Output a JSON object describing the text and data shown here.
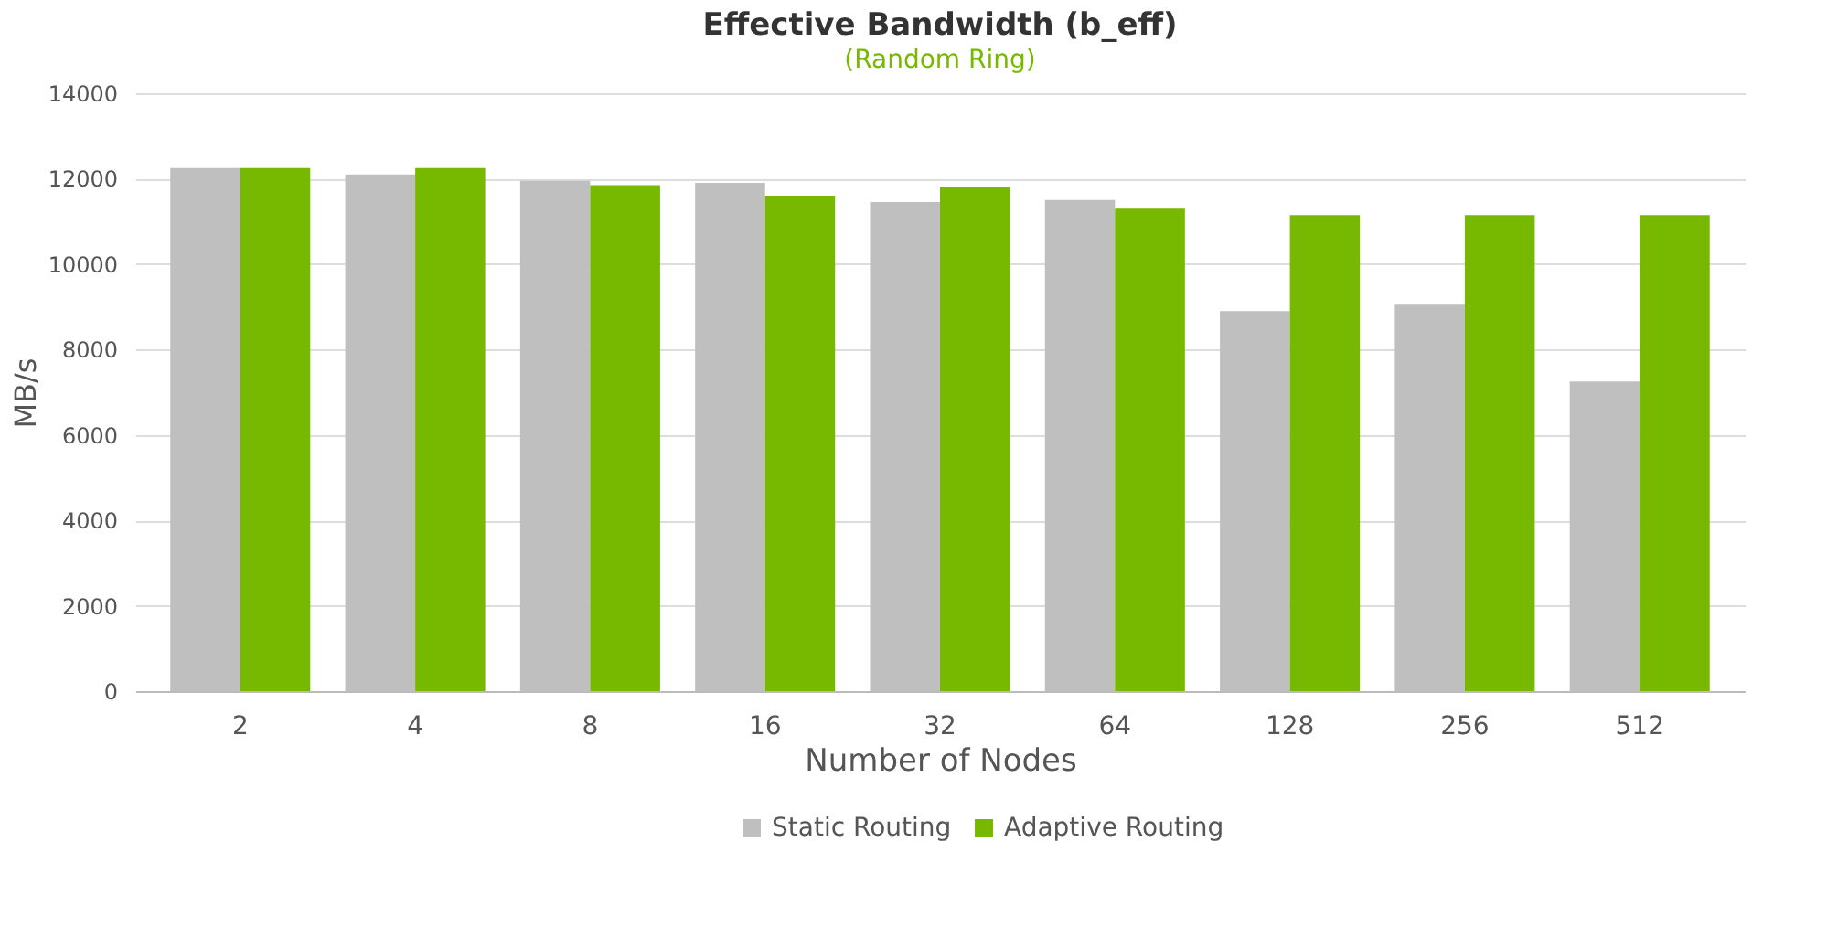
{
  "chart_data": {
    "type": "bar",
    "title": "Effective Bandwidth (b_eff)",
    "subtitle": "(Random Ring)",
    "xlabel": "Number of Nodes",
    "ylabel": "MB/s",
    "categories": [
      "2",
      "4",
      "8",
      "16",
      "32",
      "64",
      "128",
      "256",
      "512"
    ],
    "series": [
      {
        "name": "Static Routing",
        "color": "#bfbfbf",
        "values": [
          12250,
          12100,
          11950,
          11900,
          11450,
          11500,
          8900,
          9050,
          7250
        ]
      },
      {
        "name": "Adaptive Routing",
        "color": "#76b900",
        "values": [
          12250,
          12250,
          11850,
          11600,
          11800,
          11300,
          11150,
          11150,
          11150
        ]
      }
    ],
    "ylim": [
      0,
      14000
    ],
    "yticks": [
      0,
      2000,
      4000,
      6000,
      8000,
      10000,
      12000,
      14000
    ],
    "grid": "y",
    "legend": "bottom"
  }
}
